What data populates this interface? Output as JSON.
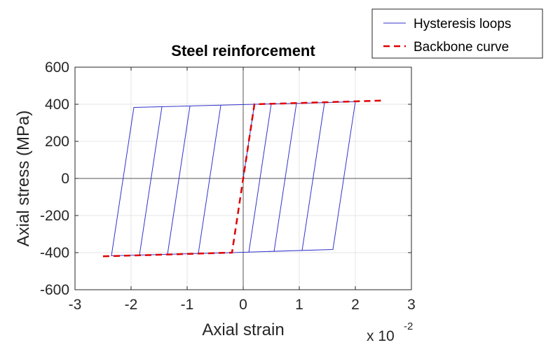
{
  "chart_data": {
    "type": "line",
    "title": "Steel reinforcement",
    "xlabel": "Axial strain",
    "ylabel": "Axial stress (MPa)",
    "x_multiplier": {
      "base": "x 10",
      "exponent": "-2"
    },
    "xlim": [
      -3,
      3
    ],
    "ylim": [
      -600,
      600
    ],
    "x_ticks": [
      -3,
      -2,
      -1,
      0,
      1,
      2,
      3
    ],
    "y_ticks": [
      -600,
      -400,
      -200,
      0,
      200,
      400,
      600
    ],
    "x_tick_labels": [
      "-3",
      "-2",
      "-1",
      "0",
      "1",
      "2",
      "3"
    ],
    "y_tick_labels": [
      "-600",
      "-400",
      "-200",
      "0",
      "200",
      "400",
      "600"
    ],
    "grid": true,
    "zero_lines": true,
    "legend_position": "top-right-outside",
    "series": [
      {
        "name": "Hysteresis loops",
        "color": "#3333cc",
        "style": "solid",
        "points": [
          [
            0,
            0
          ],
          [
            0.2,
            400
          ],
          [
            0.5,
            402
          ],
          [
            0.95,
            405
          ],
          [
            1.45,
            409
          ],
          [
            2.0,
            414
          ],
          [
            1.6,
            -383
          ],
          [
            -0.2,
            -400
          ],
          [
            -2.35,
            -417
          ],
          [
            -1.95,
            383
          ],
          [
            0.2,
            400
          ]
        ],
        "internal_lines": [
          [
            [
              0.5,
              402
            ],
            [
              0.1,
              -399
            ]
          ],
          [
            [
              0.95,
              405
            ],
            [
              0.55,
              -394
            ]
          ],
          [
            [
              1.45,
              409
            ],
            [
              1.05,
              -389
            ]
          ],
          [
            [
              -0.4,
              394
            ],
            [
              -0.8,
              -404
            ]
          ],
          [
            [
              -0.95,
              390
            ],
            [
              -1.35,
              -409
            ]
          ],
          [
            [
              -1.45,
              386
            ],
            [
              -1.85,
              -413
            ]
          ]
        ]
      },
      {
        "name": "Backbone curve",
        "color": "#e00000",
        "style": "dashed",
        "points": [
          [
            -2.5,
            -420
          ],
          [
            -0.2,
            -400
          ],
          [
            0,
            0
          ],
          [
            0.2,
            400
          ],
          [
            2.5,
            420
          ]
        ]
      }
    ]
  }
}
